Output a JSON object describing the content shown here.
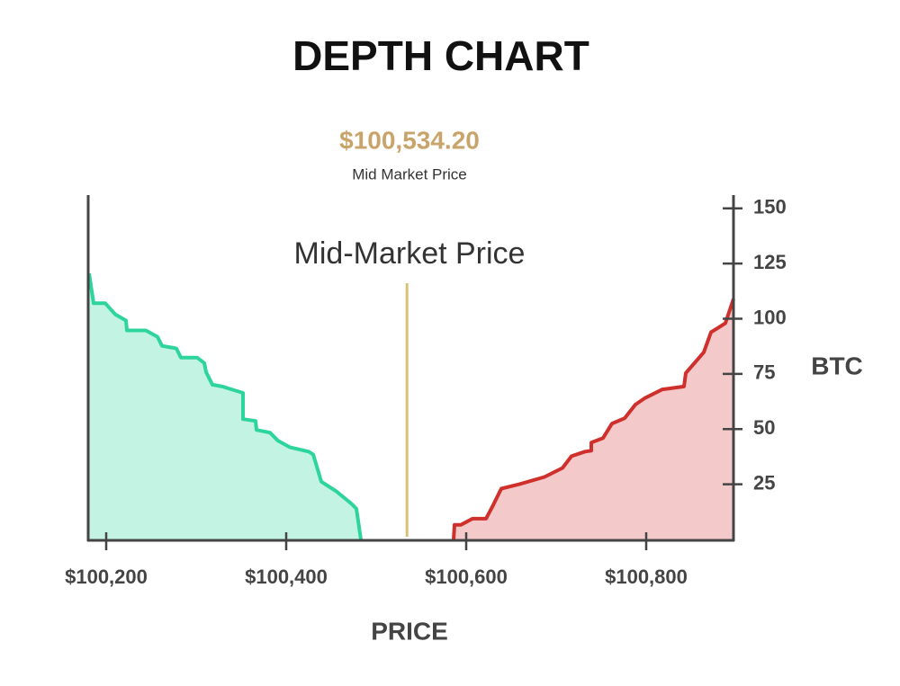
{
  "chart_data": {
    "type": "depth",
    "title": "DEPTH CHART",
    "mid_price": {
      "value": 100534.2,
      "label": "$100,534.20",
      "caption": "Mid Market Price",
      "color": "#d8c07c"
    },
    "annotation": "Mid-Market Price",
    "xlabel": "PRICE",
    "ylabel": "BTC",
    "xlim": [
      100180,
      100897
    ],
    "ylim": [
      0,
      156
    ],
    "xticks": [
      {
        "value": 100200,
        "label": "$100,200"
      },
      {
        "value": 100400,
        "label": "$100,400"
      },
      {
        "value": 100600,
        "label": "$100,600"
      },
      {
        "value": 100800,
        "label": "$100,800"
      }
    ],
    "yticks": [
      25,
      50,
      75,
      100,
      125,
      150
    ],
    "series": [
      {
        "color": "#2dd49c",
        "fill_color": "#c3f4e3",
        "x": [
          100181,
          100186,
          100199,
          100210,
          100222,
          100223,
          100244,
          100257,
          100262,
          100273,
          100278,
          100283,
          100301,
          100309,
          100311,
          100318,
          100329,
          100352,
          100352,
          100366,
          100367,
          100382,
          100391,
          100404,
          100425,
          100430,
          100439,
          100456,
          100473,
          100478,
          100483
        ],
        "values": [
          120.5,
          107.0,
          107.0,
          102.0,
          99.2,
          94.7,
          94.7,
          91.8,
          87.7,
          86.9,
          86.5,
          82.4,
          82.4,
          79.9,
          75.8,
          70.1,
          69.3,
          66.4,
          54.5,
          53.7,
          49.6,
          48.4,
          44.7,
          41.8,
          39.8,
          38.5,
          26.2,
          21.7,
          16.0,
          13.9,
          0
        ]
      },
      {
        "color": "#d0302c",
        "fill_color": "#f3c9ca",
        "x": [
          100586,
          100587,
          100594,
          100607,
          100622,
          100629,
          100639,
          100659,
          100687,
          100707,
          100717,
          100732,
          100739,
          100739,
          100752,
          100762,
          100776,
          100788,
          100798,
          100818,
          100842,
          100844,
          100864,
          100872,
          100880,
          100888,
          100897
        ],
        "values": [
          0,
          6.6,
          6.6,
          9.4,
          9.4,
          14.8,
          23.0,
          25.0,
          28.3,
          32.4,
          37.7,
          39.8,
          40.2,
          43.9,
          45.9,
          52.5,
          54.9,
          61.1,
          63.9,
          68.0,
          69.3,
          75.4,
          84.8,
          93.9,
          95.9,
          98.0,
          109.0
        ]
      }
    ]
  }
}
